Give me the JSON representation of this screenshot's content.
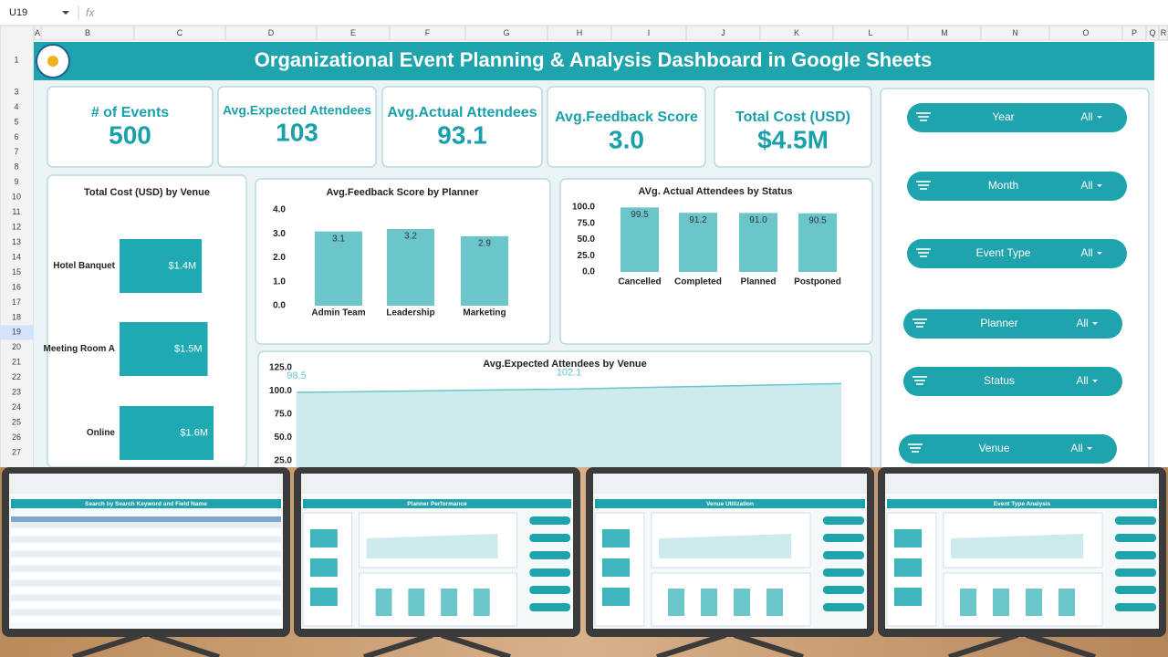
{
  "sheet": {
    "cell_ref": "U19",
    "fx": "fx",
    "columns": [
      "A",
      "B",
      "C",
      "D",
      "E",
      "F",
      "G",
      "H",
      "I",
      "J",
      "K",
      "L",
      "M",
      "N",
      "O",
      "P",
      "Q",
      "R"
    ],
    "rows": [
      "1",
      "3",
      "4",
      "5",
      "6",
      "7",
      "8",
      "9",
      "10",
      "11",
      "12",
      "13",
      "14",
      "15",
      "16",
      "17",
      "18",
      "19",
      "20",
      "21",
      "22",
      "23",
      "24",
      "25",
      "26",
      "27"
    ]
  },
  "header": {
    "title": "Organizational Event Planning & Analysis Dashboard in Google Sheets"
  },
  "kpis": [
    {
      "label": "# of Events",
      "value": "500"
    },
    {
      "label": "Avg.Expected Attendees",
      "value": "103"
    },
    {
      "label": "Avg.Actual Attendees",
      "value": "93.1"
    },
    {
      "label": "Avg.Feedback Score",
      "value": "3.0"
    },
    {
      "label": "Total Cost (USD)",
      "value": "$4.5M"
    }
  ],
  "filters": [
    {
      "label": "Year",
      "value": "All"
    },
    {
      "label": "Month",
      "value": "All"
    },
    {
      "label": "Event Type",
      "value": "All"
    },
    {
      "label": "Planner",
      "value": "All"
    },
    {
      "label": "Status",
      "value": "All"
    },
    {
      "label": "Venue",
      "value": "All"
    }
  ],
  "chart_data": [
    {
      "type": "hbar",
      "title": "Total Cost (USD) by Venue",
      "categories": [
        "Hotel Banquet",
        "Meeting Room A",
        "Online"
      ],
      "values": [
        1.4,
        1.5,
        1.6
      ],
      "value_labels": [
        "$1.4M",
        "$1.5M",
        "$1.6M"
      ],
      "color": "#1fa9b2"
    },
    {
      "type": "bar",
      "title": "Avg.Feedback Score by Planner",
      "categories": [
        "Admin Team",
        "Leadership",
        "Marketing"
      ],
      "values": [
        3.1,
        3.2,
        2.9
      ],
      "color": "#6ac6cb",
      "ylim": [
        0,
        4
      ],
      "yticks": [
        {
          "value": 0,
          "label": "0.0"
        },
        {
          "value": 1,
          "label": "1.0"
        },
        {
          "value": 2,
          "label": "2.0"
        },
        {
          "value": 3,
          "label": "3.0"
        },
        {
          "value": 4,
          "label": "4.0"
        }
      ]
    },
    {
      "type": "bar",
      "title": "AVg. Actual Attendees by Status",
      "categories": [
        "Cancelled",
        "Completed",
        "Planned",
        "Postponed"
      ],
      "values": [
        99.5,
        91.2,
        91,
        90.5
      ],
      "value_labels": [
        "99.5",
        "91.2",
        "91.0",
        "90.5"
      ],
      "color": "#6ac6cb",
      "ylim": [
        0,
        100
      ],
      "yticks": [
        {
          "value": 0,
          "label": "0.0"
        },
        {
          "value": 25,
          "label": "25.0"
        },
        {
          "value": 50,
          "label": "50.0"
        },
        {
          "value": 75,
          "label": "75.0"
        },
        {
          "value": 100,
          "label": "100.0"
        }
      ]
    },
    {
      "type": "area",
      "title": "Avg.Expected Attendees by Venue",
      "categories": [
        null,
        null,
        null
      ],
      "values": [
        98.5,
        102.1,
        108
      ],
      "value_labels": [
        "98.5",
        "102.1",
        null
      ],
      "color": "#6ac6cb",
      "ylim": [
        0,
        125
      ],
      "yticks": [
        {
          "value": 25,
          "label": "25.0"
        },
        {
          "value": 50,
          "label": "50.0"
        },
        {
          "value": 75,
          "label": "75.0"
        },
        {
          "value": 100,
          "label": "100.0"
        },
        {
          "value": 125,
          "label": "125.0"
        }
      ]
    }
  ],
  "thumbnails": [
    {
      "title": "Search by Search Keyword and Field Name"
    },
    {
      "title": "Planner Performance"
    },
    {
      "title": "Venue Utilization"
    },
    {
      "title": "Event Type Analysis"
    }
  ]
}
